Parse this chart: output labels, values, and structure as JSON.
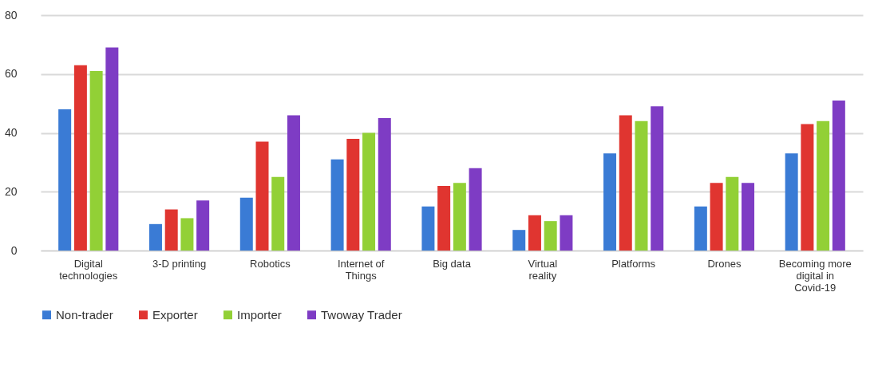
{
  "chart_data": {
    "type": "bar",
    "categories": [
      "Digital technologies",
      "3-D printing",
      "Robotics",
      "Internet of Things",
      "Big data",
      "Virtual reality",
      "Platforms",
      "Drones",
      "Becoming more digital in Covid-19"
    ],
    "series": [
      {
        "name": "Non-trader",
        "color": "#3a7bd5",
        "values": [
          48,
          9,
          18,
          31,
          15,
          7,
          33,
          15,
          33
        ]
      },
      {
        "name": "Exporter",
        "color": "#e03530",
        "values": [
          63,
          14,
          37,
          38,
          22,
          12,
          46,
          23,
          43
        ]
      },
      {
        "name": "Importer",
        "color": "#92d036",
        "values": [
          61,
          11,
          25,
          40,
          23,
          10,
          44,
          25,
          44
        ]
      },
      {
        "name": "Twoway Trader",
        "color": "#7e3cc4",
        "values": [
          69,
          17,
          46,
          45,
          28,
          12,
          49,
          23,
          51
        ]
      }
    ],
    "ylim": [
      0,
      80
    ],
    "yticks": [
      0,
      20,
      40,
      60,
      80
    ],
    "grid": "y",
    "legend": "bottom"
  }
}
